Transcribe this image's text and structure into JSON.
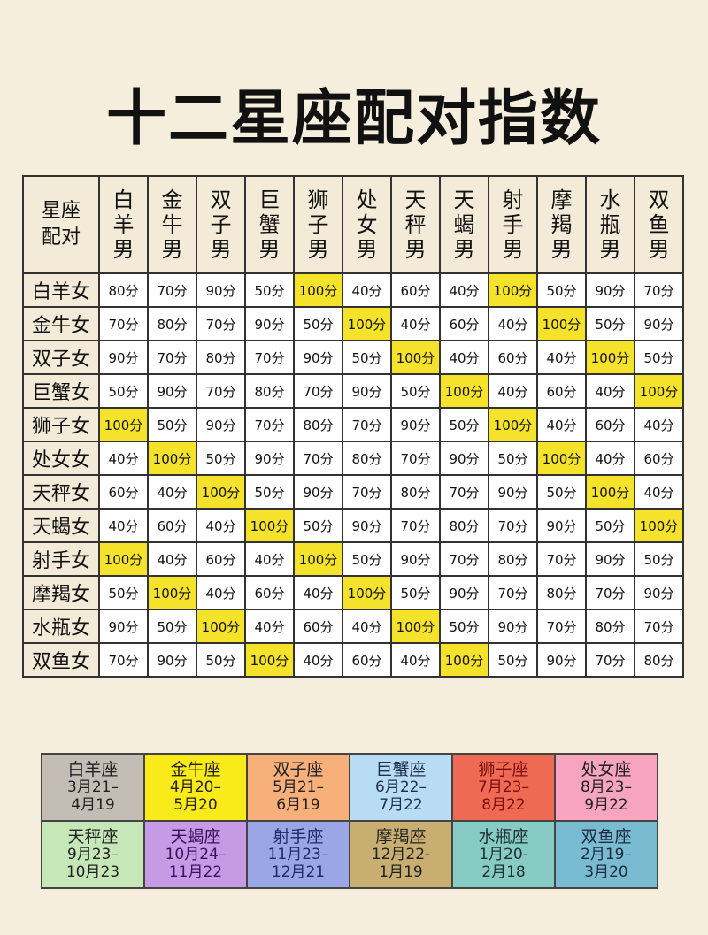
{
  "title": "十二星座配对指数",
  "corner": "星座配对",
  "columns": [
    "白羊男",
    "金牛男",
    "双子男",
    "巨蟹男",
    "狮子男",
    "处女男",
    "天秤男",
    "天蝎男",
    "射手男",
    "摩羯男",
    "水瓶男",
    "双鱼男"
  ],
  "rows": [
    {
      "name": "白羊女",
      "values": [
        "80分",
        "70分",
        "90分",
        "50分",
        "100分",
        "40分",
        "60分",
        "40分",
        "100分",
        "50分",
        "90分",
        "70分"
      ]
    },
    {
      "name": "金牛女",
      "values": [
        "70分",
        "80分",
        "70分",
        "90分",
        "50分",
        "100分",
        "40分",
        "60分",
        "40分",
        "100分",
        "50分",
        "90分"
      ]
    },
    {
      "name": "双子女",
      "values": [
        "90分",
        "70分",
        "80分",
        "70分",
        "90分",
        "50分",
        "100分",
        "40分",
        "60分",
        "40分",
        "100分",
        "50分"
      ]
    },
    {
      "name": "巨蟹女",
      "values": [
        "50分",
        "90分",
        "70分",
        "80分",
        "70分",
        "90分",
        "50分",
        "100分",
        "40分",
        "60分",
        "40分",
        "100分"
      ]
    },
    {
      "name": "狮子女",
      "values": [
        "100分",
        "50分",
        "90分",
        "70分",
        "80分",
        "70分",
        "90分",
        "50分",
        "100分",
        "40分",
        "60分",
        "40分"
      ]
    },
    {
      "name": "处女女",
      "values": [
        "40分",
        "100分",
        "50分",
        "90分",
        "70分",
        "80分",
        "70分",
        "90分",
        "50分",
        "100分",
        "40分",
        "60分"
      ]
    },
    {
      "name": "天秤女",
      "values": [
        "60分",
        "40分",
        "100分",
        "50分",
        "90分",
        "70分",
        "80分",
        "70分",
        "90分",
        "50分",
        "100分",
        "40分"
      ]
    },
    {
      "name": "天蝎女",
      "values": [
        "40分",
        "60分",
        "40分",
        "100分",
        "50分",
        "90分",
        "70分",
        "80分",
        "70分",
        "90分",
        "50分",
        "100分"
      ]
    },
    {
      "name": "射手女",
      "values": [
        "100分",
        "40分",
        "60分",
        "40分",
        "100分",
        "50分",
        "90分",
        "70分",
        "80分",
        "70分",
        "90分",
        "50分"
      ]
    },
    {
      "name": "摩羯女",
      "values": [
        "50分",
        "100分",
        "40分",
        "60分",
        "40分",
        "100分",
        "50分",
        "90分",
        "70分",
        "80分",
        "70分",
        "90分"
      ]
    },
    {
      "name": "水瓶女",
      "values": [
        "90分",
        "50分",
        "100分",
        "40分",
        "60分",
        "40分",
        "100分",
        "50分",
        "90分",
        "70分",
        "80分",
        "70分"
      ]
    },
    {
      "name": "双鱼女",
      "values": [
        "70分",
        "90分",
        "50分",
        "100分",
        "40分",
        "60分",
        "40分",
        "100分",
        "50分",
        "90分",
        "70分",
        "80分"
      ]
    }
  ],
  "highlight_color": "#f5e22a",
  "legend": [
    {
      "name": "白羊座",
      "from": "3月21–",
      "to": "4月19",
      "bg": "#c3bdb6",
      "fg": "#222"
    },
    {
      "name": "金牛座",
      "from": "4月20–",
      "to": "5月20",
      "bg": "#f9ea1a",
      "fg": "#222"
    },
    {
      "name": "双子座",
      "from": "5月21–",
      "to": "6月19",
      "bg": "#f7b07a",
      "fg": "#222"
    },
    {
      "name": "巨蟹座",
      "from": "6月22–",
      "to": "7月22",
      "bg": "#b9dcf5",
      "fg": "#1e3050"
    },
    {
      "name": "狮子座",
      "from": "7月23–",
      "to": "8月22",
      "bg": "#ee6a52",
      "fg": "#7a0d10"
    },
    {
      "name": "处女座",
      "from": "8月23–",
      "to": "9月22",
      "bg": "#f7a4c0",
      "fg": "#222"
    },
    {
      "name": "天秤座",
      "from": "9月23–",
      "to": "10月23",
      "bg": "#c6e8b9",
      "fg": "#222"
    },
    {
      "name": "天蝎座",
      "from": "10月24–",
      "to": "11月22",
      "bg": "#c79ae6",
      "fg": "#3a1060"
    },
    {
      "name": "射手座",
      "from": "11月23–",
      "to": "12月21",
      "bg": "#9aa6e6",
      "fg": "#1e2a6a"
    },
    {
      "name": "摩羯座",
      "from": "12月22-",
      "to": "1月19",
      "bg": "#c9ae72",
      "fg": "#222"
    },
    {
      "name": "水瓶座",
      "from": "1月20-",
      "to": "2月18",
      "bg": "#86cbc4",
      "fg": "#1e3030"
    },
    {
      "name": "双鱼座",
      "from": "2月19–",
      "to": "3月20",
      "bg": "#79bcd2",
      "fg": "#1e2a40"
    }
  ]
}
